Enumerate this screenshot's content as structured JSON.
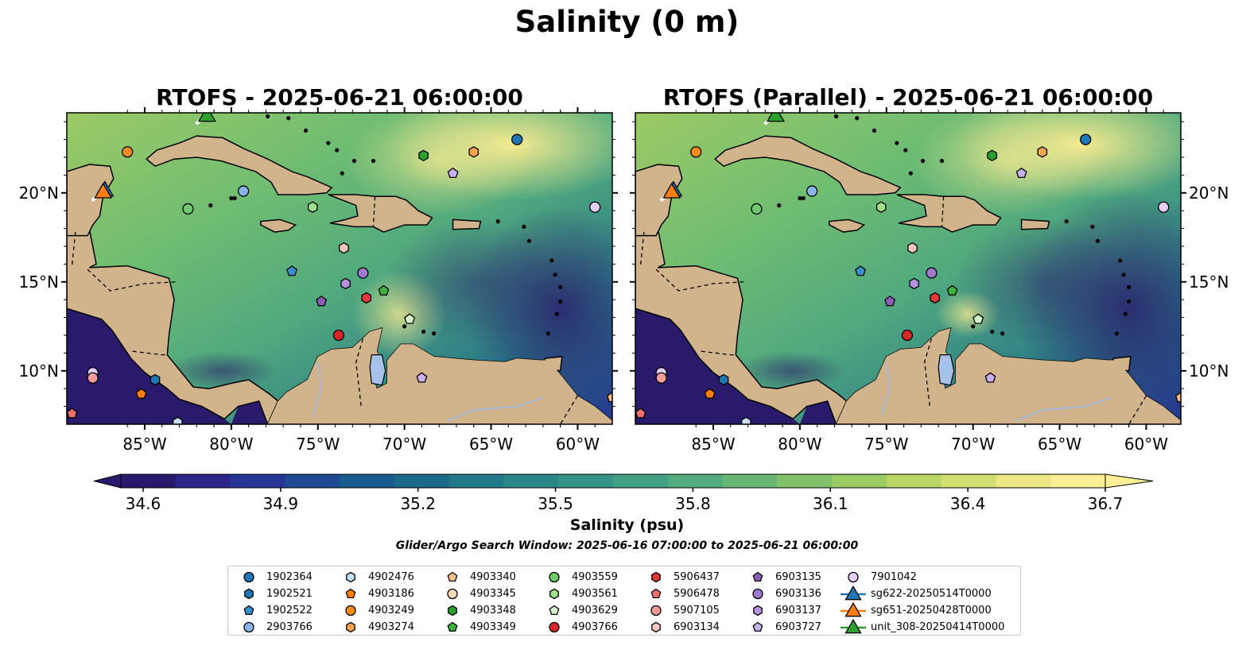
{
  "suptitle": "Salinity (0 m)",
  "panels": [
    {
      "title": "RTOFS - 2025-06-21 06:00:00"
    },
    {
      "title": "RTOFS (Parallel) - 2025-06-21 06:00:00"
    }
  ],
  "map": {
    "lon_range": [
      -89.5,
      -58.0
    ],
    "lat_range": [
      7.0,
      24.5
    ],
    "lon_ticks": [
      "85°W",
      "80°W",
      "75°W",
      "70°W",
      "65°W",
      "60°W"
    ],
    "lat_ticks": [
      "10°N",
      "15°N",
      "20°N"
    ],
    "land_color": "#d2b48c",
    "ocean_low_color": "#2a1a6b",
    "ocean_high_color": "#fbe98f"
  },
  "colorbar": {
    "label": "Salinity (psu)",
    "min": 34.6,
    "max": 36.7,
    "ticks": [
      "34.6",
      "34.9",
      "35.2",
      "35.5",
      "35.8",
      "36.1",
      "36.4",
      "36.7"
    ],
    "colors": [
      "#2a186c",
      "#2c2588",
      "#253694",
      "#1f4a92",
      "#1a5b8e",
      "#1b6a8a",
      "#207888",
      "#2d8788",
      "#379387",
      "#42a085",
      "#52ac7e",
      "#68b774",
      "#80c16a",
      "#9bcb63",
      "#b8d566",
      "#d3de72",
      "#ebe784",
      "#fbee95"
    ]
  },
  "search_window": "Glider/Argo Search Window: 2025-06-16 07:00:00 to 2025-06-21 06:00:00",
  "legend": [
    {
      "label": "1902364",
      "marker": "circle",
      "color": "#1f77b4"
    },
    {
      "label": "1902521",
      "marker": "hexagon",
      "color": "#1f77b4"
    },
    {
      "label": "1902522",
      "marker": "pentagon",
      "color": "#3a8fcf"
    },
    {
      "label": "2903766",
      "marker": "circle",
      "color": "#8ab4e8"
    },
    {
      "label": "4902476",
      "marker": "hexagon",
      "color": "#c6e0f5"
    },
    {
      "label": "4903186",
      "marker": "pentagon",
      "color": "#ff7f0e"
    },
    {
      "label": "4903249",
      "marker": "circle",
      "color": "#ff8c1a"
    },
    {
      "label": "4903274",
      "marker": "hexagon",
      "color": "#ffa54f"
    },
    {
      "label": "4903340",
      "marker": "pentagon",
      "color": "#ffc28a"
    },
    {
      "label": "4903345",
      "marker": "circle",
      "color": "#ffd7b0"
    },
    {
      "label": "4903348",
      "marker": "hexagon",
      "color": "#2ca02c"
    },
    {
      "label": "4903349",
      "marker": "pentagon",
      "color": "#3cb33c"
    },
    {
      "label": "4903559",
      "marker": "circle",
      "color": "#6cc96c"
    },
    {
      "label": "4903561",
      "marker": "hexagon",
      "color": "#a2e08f"
    },
    {
      "label": "4903629",
      "marker": "pentagon",
      "color": "#d4f5c9"
    },
    {
      "label": "4903766",
      "marker": "circle",
      "color": "#d62728"
    },
    {
      "label": "5906437",
      "marker": "hexagon",
      "color": "#e03a3a"
    },
    {
      "label": "5906478",
      "marker": "pentagon",
      "color": "#f07070"
    },
    {
      "label": "5907105",
      "marker": "circle",
      "color": "#f59a9a"
    },
    {
      "label": "6903134",
      "marker": "hexagon",
      "color": "#fbc7c2"
    },
    {
      "label": "6903135",
      "marker": "pentagon",
      "color": "#8c5fb5"
    },
    {
      "label": "6903136",
      "marker": "circle",
      "color": "#a07ad0"
    },
    {
      "label": "6903137",
      "marker": "hexagon",
      "color": "#b493e0"
    },
    {
      "label": "6903727",
      "marker": "pentagon",
      "color": "#c9b0f0"
    },
    {
      "label": "7901042",
      "marker": "circle",
      "color": "#e4cdf7"
    },
    {
      "label": "sg622-20250514T0000",
      "marker": "triangle",
      "color": "#1f77b4"
    },
    {
      "label": "sg651-20250428T0000",
      "marker": "triangle",
      "color": "#ff7f0e"
    },
    {
      "label": "unit_308-20250414T0000",
      "marker": "triangle",
      "color": "#2ca02c"
    }
  ],
  "floats": [
    {
      "id": "1902364",
      "lon": -63.5,
      "lat": 23.0
    },
    {
      "id": "4903186",
      "lon": -85.2,
      "lat": 8.7
    },
    {
      "id": "4903249",
      "lon": -86.0,
      "lat": 22.3
    },
    {
      "id": "4903274",
      "lon": -66.0,
      "lat": 22.3
    },
    {
      "id": "4903348",
      "lon": -68.9,
      "lat": 22.1
    },
    {
      "id": "2903766",
      "lon": -79.3,
      "lat": 20.1
    },
    {
      "id": "4903559",
      "lon": -82.5,
      "lat": 19.1
    },
    {
      "id": "4903561",
      "lon": -75.3,
      "lat": 19.2
    },
    {
      "id": "6903727",
      "lon": -67.2,
      "lat": 21.1
    },
    {
      "id": "7901042",
      "lon": -59.0,
      "lat": 19.2
    },
    {
      "id": "6903134",
      "lon": -73.5,
      "lat": 16.9
    },
    {
      "id": "1902522",
      "lon": -76.5,
      "lat": 15.6
    },
    {
      "id": "6903136",
      "lon": -72.4,
      "lat": 15.5
    },
    {
      "id": "6903137",
      "lon": -73.4,
      "lat": 14.9
    },
    {
      "id": "4903349",
      "lon": -71.2,
      "lat": 14.5
    },
    {
      "id": "6903135",
      "lon": -74.8,
      "lat": 13.9
    },
    {
      "id": "5906437",
      "lon": -72.2,
      "lat": 14.1
    },
    {
      "id": "4903629",
      "lon": -69.7,
      "lat": 12.9
    },
    {
      "id": "4903766",
      "lon": -73.8,
      "lat": 12.0
    },
    {
      "id": "1902521",
      "lon": -84.4,
      "lat": 9.5
    },
    {
      "id": "6903727b",
      "lon": -69.0,
      "lat": 9.6
    },
    {
      "id": "7901042b",
      "lon": -88.0,
      "lat": 9.9
    },
    {
      "id": "5907105",
      "lon": -88.0,
      "lat": 9.6
    },
    {
      "id": "5906478",
      "lon": -89.2,
      "lat": 7.6
    },
    {
      "id": "4902476",
      "lon": -83.1,
      "lat": 7.1
    },
    {
      "id": "4903340",
      "lon": -58.0,
      "lat": 8.5
    }
  ],
  "gliders": [
    {
      "id": "sg622-20250514T0000",
      "lon": -87.3,
      "lat": 20.2
    },
    {
      "id": "sg651-20250428T0000",
      "lon": -87.4,
      "lat": 20.1
    },
    {
      "id": "unit_308-20250414T0000",
      "lon": -81.4,
      "lat": 24.4
    }
  ]
}
